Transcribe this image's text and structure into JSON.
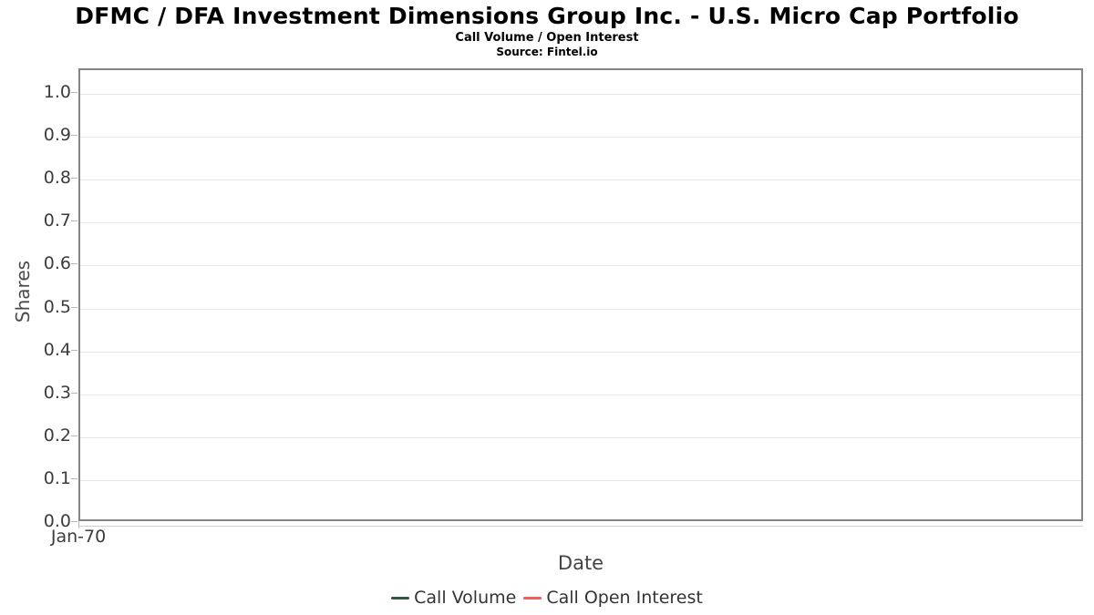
{
  "chart_data": {
    "type": "line",
    "title": "DFMC / DFA Investment Dimensions Group Inc. - U.S. Micro Cap Portfolio",
    "subtitle": "Call Volume / Open Interest",
    "source": "Source: Fintel.io",
    "xlabel": "Date",
    "ylabel": "Shares",
    "ylim": [
      0.0,
      1.0
    ],
    "yticks": [
      "0.0",
      "0.1",
      "0.2",
      "0.3",
      "0.4",
      "0.5",
      "0.6",
      "0.7",
      "0.8",
      "0.9",
      "1.0"
    ],
    "xticks": [
      "Jan-70"
    ],
    "grid": true,
    "legend_position": "bottom",
    "series": [
      {
        "name": "Call Volume",
        "color": "#2d5a40",
        "values": []
      },
      {
        "name": "Call Open Interest",
        "color": "#f45b5b",
        "values": []
      }
    ],
    "colors": {
      "plot_border": "#858585",
      "gridline": "#e7e7e7",
      "tick": "#b8b8b8",
      "axis_line": "#d0d0d0",
      "tick_text": "#3c3c3c",
      "axis_title_text": "#4a4a4a",
      "legend_text": "#333333",
      "title_text": "#000000",
      "background": "#ffffff"
    }
  }
}
